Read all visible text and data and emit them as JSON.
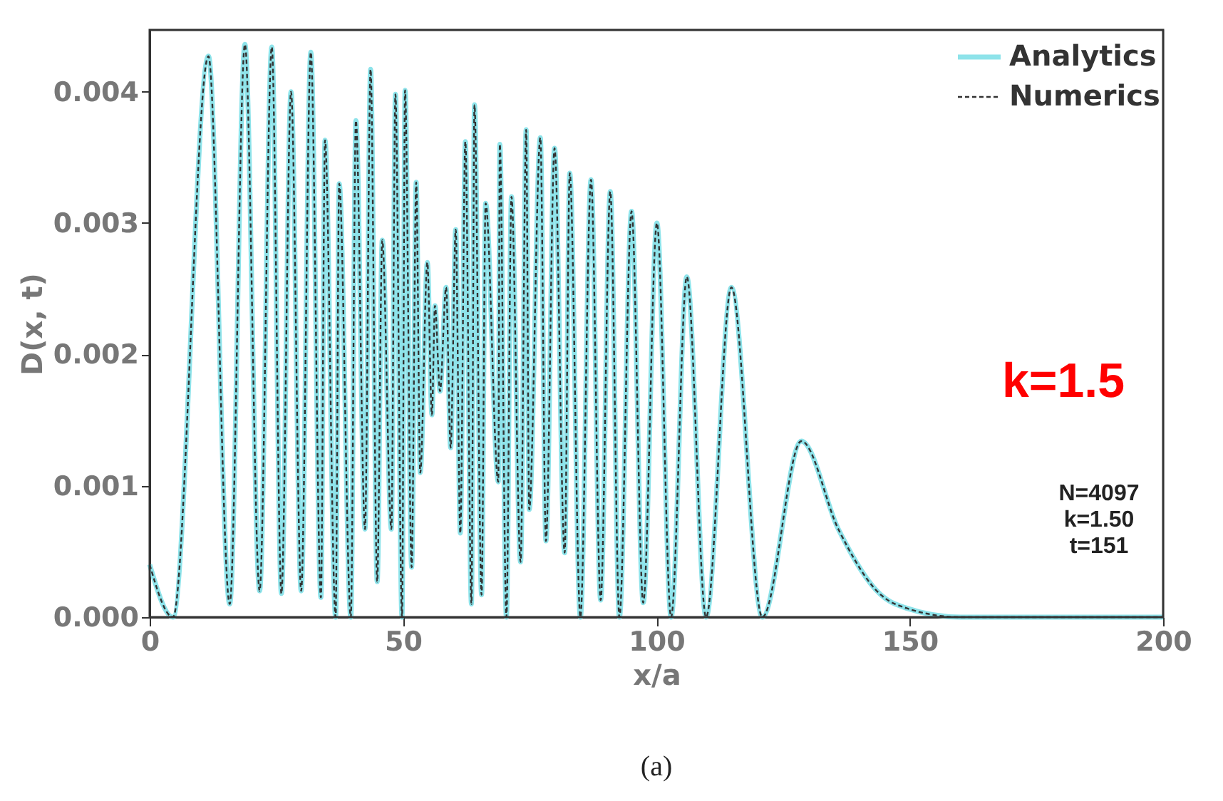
{
  "chart_data": {
    "type": "line",
    "xlabel": "x/a",
    "ylabel": "D(x, t)",
    "xlim": [
      0,
      200
    ],
    "ylim": [
      0,
      0.00447
    ],
    "xticks": [
      0,
      50,
      100,
      150,
      200
    ],
    "yticks": [
      {
        "value": 0,
        "label": "0.000"
      },
      {
        "value": 0.001,
        "label": "0.001"
      },
      {
        "value": 0.002,
        "label": "0.002"
      },
      {
        "value": 0.003,
        "label": "0.003"
      },
      {
        "value": 0.004,
        "label": "0.004"
      }
    ],
    "x": [
      0,
      4.6,
      11.6,
      15.8,
      18.8,
      21.7,
      24.1,
      26,
      27.9,
      29.9,
      31.8,
      33.8,
      34.6,
      36.7,
      37.4,
      39.7,
      40.7,
      42.5,
      43.6,
      44.9,
      45.9,
      47.7,
      48.5,
      49.8,
      50.4,
      51.7,
      52.6,
      53.4,
      54.8,
      55.7,
      56.3,
      57.3,
      58.5,
      59.4,
      60.4,
      61.3,
      62.3,
      63.5,
      64.1,
      65.5,
      66.3,
      68.8,
      69.1,
      70.4,
      71.4,
      73.2,
      74.3,
      74.9,
      77.1,
      78.2,
      79.9,
      81.9,
      82.9,
      85,
      87.1,
      89,
      90.9,
      92.7,
      95.1,
      97.4,
      100.1,
      102.9,
      106,
      109.8,
      114.8,
      120.9,
      128.6,
      135.9,
      144.3,
      147.1,
      160,
      200
    ],
    "series": [
      {
        "name": "Analytics",
        "color": "#8ee3ea",
        "line_style": "solid",
        "values": [
          0.0004,
          0,
          0.00427,
          0.0001,
          0.00436,
          0.0002,
          0.00434,
          0.00018,
          0.004,
          0.0002,
          0.0043,
          0.00015,
          0.00363,
          0,
          0.0033,
          0,
          0.00378,
          0.00067,
          0.00417,
          0.00027,
          0.00287,
          0.00067,
          0.00398,
          0,
          0.00401,
          0.00038,
          0.00331,
          0.0011,
          0.0027,
          0.00154,
          0.00237,
          0.00172,
          0.00251,
          0.00129,
          0.00295,
          0.00064,
          0.00362,
          0.0001,
          0.0039,
          0.00017,
          0.00315,
          0.00103,
          0.0036,
          0,
          0.0032,
          0.00042,
          0.00371,
          0.00082,
          0.00365,
          0.00058,
          0.00357,
          0.00049,
          0.00338,
          0,
          0.00333,
          0.00013,
          0.00324,
          0,
          0.00309,
          0.00011,
          0.003,
          0,
          0.00259,
          0,
          0.00251,
          0,
          0.00134,
          0.00067,
          0.00017,
          0.0001,
          0,
          0
        ]
      },
      {
        "name": "Numerics",
        "color": "#333333",
        "line_style": "dashed",
        "values": [
          0.0004,
          0,
          0.00427,
          0.0001,
          0.00436,
          0.0002,
          0.00434,
          0.00018,
          0.004,
          0.0002,
          0.0043,
          0.00015,
          0.00363,
          0,
          0.0033,
          0,
          0.00378,
          0.00067,
          0.00417,
          0.00027,
          0.00287,
          0.00067,
          0.00398,
          0,
          0.00401,
          0.00038,
          0.00331,
          0.0011,
          0.0027,
          0.00154,
          0.00237,
          0.00172,
          0.00251,
          0.00129,
          0.00295,
          0.00064,
          0.00362,
          0.0001,
          0.0039,
          0.00017,
          0.00315,
          0.00103,
          0.0036,
          0,
          0.0032,
          0.00042,
          0.00371,
          0.00082,
          0.00365,
          0.00058,
          0.00357,
          0.00049,
          0.00338,
          0,
          0.00333,
          0.00013,
          0.00324,
          0,
          0.00309,
          0.00011,
          0.003,
          0,
          0.00259,
          0,
          0.00251,
          0,
          0.00134,
          0.00067,
          0.00017,
          0.0001,
          0,
          0
        ]
      }
    ],
    "legend": "top right",
    "grid": false,
    "marker": "none",
    "annotations": [
      "k=1.5",
      "N=4097\nk=1.50\nt=151",
      "(a)"
    ]
  }
}
